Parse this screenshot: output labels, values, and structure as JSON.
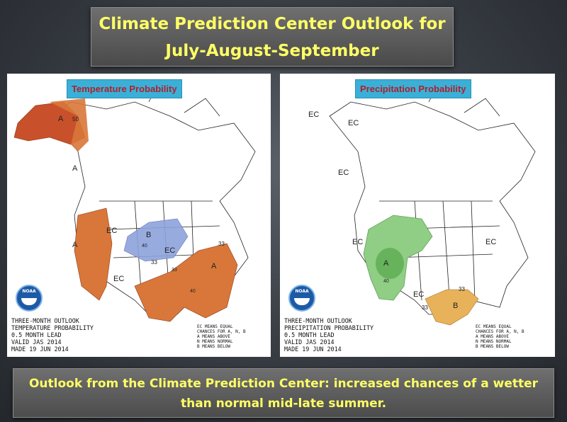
{
  "title": {
    "line1": "Climate Prediction Center Outlook for",
    "line2": "July-August-September"
  },
  "temperature_panel": {
    "tag": "Temperature Probability",
    "caption": [
      "THREE-MONTH OUTLOOK",
      "TEMPERATURE PROBABILITY",
      "0.5 MONTH LEAD",
      "VALID JAS 2014",
      "MADE 19 JUN 2014"
    ],
    "legend": [
      "EC MEANS EQUAL",
      "CHANCES FOR A, N, B",
      "A MEANS ABOVE",
      "N MEANS NORMAL",
      "B MEANS BELOW"
    ],
    "labels": [
      "A",
      "50",
      "A",
      "A",
      "EC",
      "B",
      "40",
      "33",
      "EC",
      "33",
      "A",
      "EC",
      "40",
      "33"
    ],
    "colors": {
      "above": "#d9773a",
      "above_strong": "#c8502a",
      "below": "#8da2dc"
    }
  },
  "precipitation_panel": {
    "tag": "Precipitation Probability",
    "caption": [
      "THREE-MONTH OUTLOOK",
      "PRECIPITATION PROBABILITY",
      "0.5 MONTH LEAD",
      "VALID JAS 2014",
      "MADE 19 JUN 2014"
    ],
    "legend": [
      "EC MEANS EQUAL",
      "CHANCES FOR A, N, B",
      "A MEANS ABOVE",
      "N MEANS NORMAL",
      "B MEANS BELOW"
    ],
    "labels": [
      "EC",
      "EC",
      "EC",
      "EC",
      "A",
      "40",
      "EC",
      "EC",
      "33",
      "B",
      "33"
    ],
    "colors": {
      "above": "#8fce84",
      "above_strong": "#66b35c",
      "below": "#e8b25a"
    }
  },
  "logo_text": "NOAA",
  "bottom_caption": "Outlook from the Climate Prediction Center: increased chances of a wetter than normal mid-late summer."
}
